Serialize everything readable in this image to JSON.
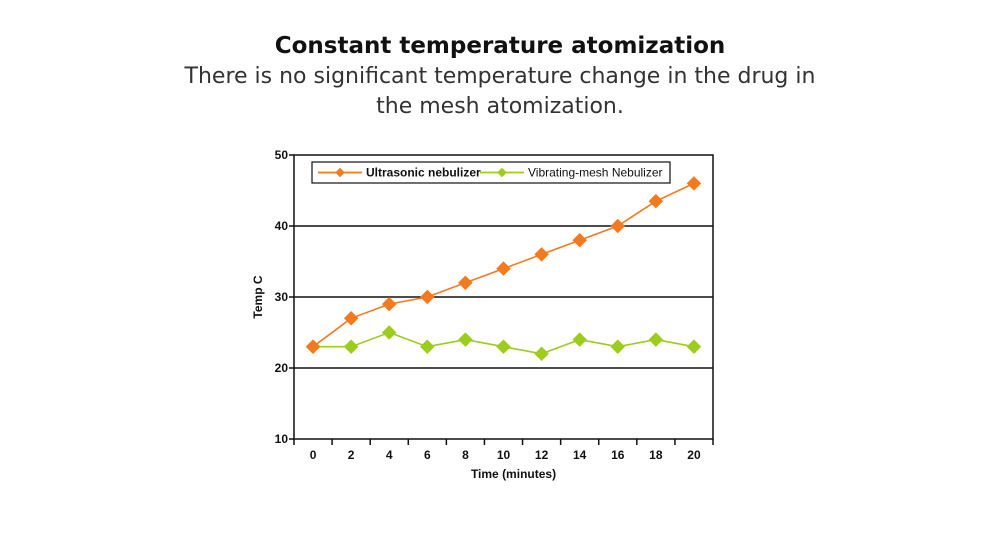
{
  "heading": {
    "title": "Constant temperature atomization",
    "subtitle": "There is no significant temperature change in the drug in the mesh atomization."
  },
  "colors": {
    "ultrasonic": "#f47a1f",
    "mesh": "#9ccc1c",
    "axis": "#111111"
  },
  "chart_data": {
    "type": "line",
    "title": "",
    "xlabel": "Time (minutes)",
    "ylabel": "Temp C",
    "x": [
      0,
      2,
      4,
      6,
      8,
      10,
      12,
      14,
      16,
      18,
      20
    ],
    "xlim": [
      -1,
      21
    ],
    "ylim": [
      10,
      50
    ],
    "yticks": [
      10,
      20,
      30,
      40,
      50
    ],
    "grid": "horizontal",
    "legend_position": "top",
    "series": [
      {
        "name": "Ultrasonic nebulizer",
        "color": "#f47a1f",
        "bold_label": true,
        "values": [
          23,
          27,
          29,
          30,
          32,
          34,
          36,
          38,
          40,
          43.5,
          46
        ]
      },
      {
        "name": "Vibrating-mesh Nebulizer",
        "color": "#9ccc1c",
        "bold_label": false,
        "values": [
          23,
          23,
          25,
          23,
          24,
          23,
          22,
          24,
          23,
          24,
          23
        ]
      }
    ]
  }
}
